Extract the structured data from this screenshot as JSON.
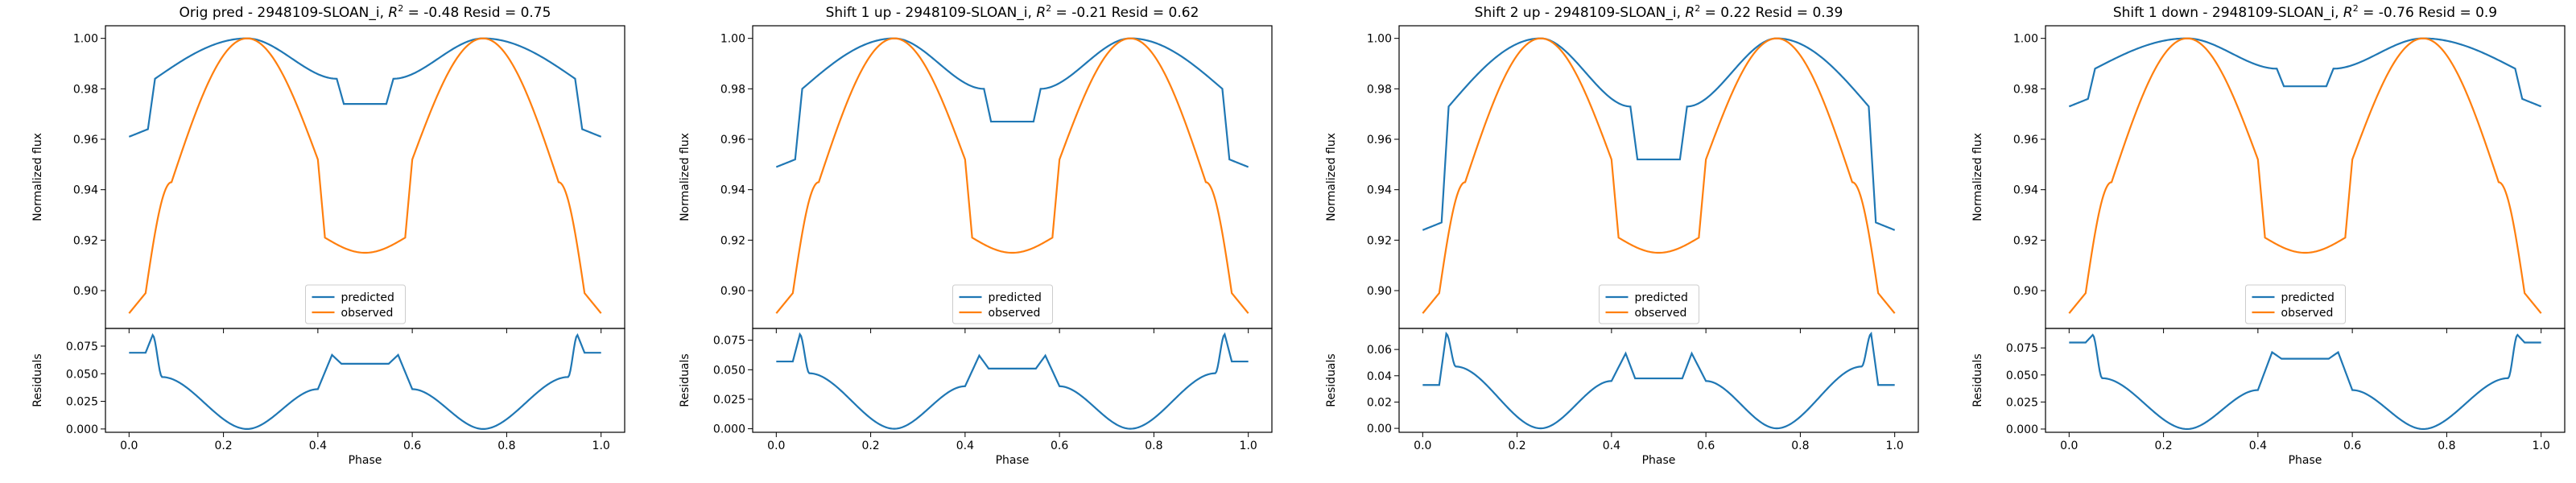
{
  "colors": {
    "predicted": "#1f77b4",
    "observed": "#ff7f0e",
    "axes": "#000000",
    "legend_border": "#cccccc"
  },
  "chart_data": [
    {
      "type": "line",
      "title_prefix": "Orig pred - 2948109-SLOAN_i, ",
      "r2_symbol": "R",
      "r2_exp": "2",
      "title_suffix": " = -0.48 Resid = 0.75",
      "xlabel": "Phase",
      "ylabel": "Normalized flux",
      "resid_ylabel": "Residuals",
      "legend": {
        "placement": "lower-center",
        "entries": [
          "predicted",
          "observed"
        ]
      },
      "xlim": [
        -0.05,
        1.05
      ],
      "ylim": [
        0.885,
        1.005
      ],
      "resid_ylim": [
        -0.003,
        0.091
      ],
      "xticks": [
        "0.0",
        "0.2",
        "0.4",
        "0.6",
        "0.8",
        "1.0"
      ],
      "yticks": [
        "0.90",
        "0.92",
        "0.94",
        "0.96",
        "0.98",
        "1.00"
      ],
      "resid_yticks": [
        "0.000",
        "0.025",
        "0.050",
        "0.075"
      ],
      "predicted": {
        "base": 0.961,
        "egress": 0.984,
        "peak": 1.0,
        "trough": 0.974
      },
      "observed": {
        "base": 0.891,
        "shoulder": 0.943,
        "peak": 1.0,
        "break": 0.952,
        "trough": 0.915
      },
      "residuals": {
        "start": 0.069,
        "spike": 0.085,
        "mid": 0.059,
        "midspike": 0.067
      }
    },
    {
      "type": "line",
      "title_prefix": "Shift 1 up - 2948109-SLOAN_i, ",
      "r2_symbol": "R",
      "r2_exp": "2",
      "title_suffix": " = -0.21 Resid = 0.62",
      "xlabel": "Phase",
      "ylabel": "Normalized flux",
      "resid_ylabel": "Residuals",
      "legend": {
        "placement": "lower-center",
        "entries": [
          "predicted",
          "observed"
        ]
      },
      "xlim": [
        -0.05,
        1.05
      ],
      "ylim": [
        0.885,
        1.005
      ],
      "resid_ylim": [
        -0.003,
        0.085
      ],
      "xticks": [
        "0.0",
        "0.2",
        "0.4",
        "0.6",
        "0.8",
        "1.0"
      ],
      "yticks": [
        "0.90",
        "0.92",
        "0.94",
        "0.96",
        "0.98",
        "1.00"
      ],
      "resid_yticks": [
        "0.000",
        "0.025",
        "0.050",
        "0.075"
      ],
      "predicted": {
        "base": 0.949,
        "egress": 0.98,
        "peak": 1.0,
        "trough": 0.967
      },
      "observed": {
        "base": 0.891,
        "shoulder": 0.943,
        "peak": 1.0,
        "break": 0.952,
        "trough": 0.915
      },
      "residuals": {
        "start": 0.057,
        "spike": 0.08,
        "mid": 0.051,
        "midspike": 0.062
      }
    },
    {
      "type": "line",
      "title_prefix": "Shift 2 up - 2948109-SLOAN_i, ",
      "r2_symbol": "R",
      "r2_exp": "2",
      "title_suffix": " = 0.22 Resid = 0.39",
      "xlabel": "Phase",
      "ylabel": "Normalized flux",
      "resid_ylabel": "Residuals",
      "legend": {
        "placement": "lower-center",
        "entries": [
          "predicted",
          "observed"
        ]
      },
      "xlim": [
        -0.05,
        1.05
      ],
      "ylim": [
        0.885,
        1.005
      ],
      "resid_ylim": [
        -0.003,
        0.076
      ],
      "xticks": [
        "0.0",
        "0.2",
        "0.4",
        "0.6",
        "0.8",
        "1.0"
      ],
      "yticks": [
        "0.90",
        "0.92",
        "0.94",
        "0.96",
        "0.98",
        "1.00"
      ],
      "resid_yticks": [
        "0.00",
        "0.02",
        "0.04",
        "0.06"
      ],
      "predicted": {
        "base": 0.924,
        "egress": 0.973,
        "peak": 1.0,
        "trough": 0.952
      },
      "observed": {
        "base": 0.891,
        "shoulder": 0.943,
        "peak": 1.0,
        "break": 0.952,
        "trough": 0.915
      },
      "residuals": {
        "start": 0.033,
        "spike": 0.072,
        "mid": 0.038,
        "midspike": 0.057
      }
    },
    {
      "type": "line",
      "title_prefix": "Shift 1 down - 2948109-SLOAN_i, ",
      "r2_symbol": "R",
      "r2_exp": "2",
      "title_suffix": " = -0.76 Resid = 0.9",
      "xlabel": "Phase",
      "ylabel": "Normalized flux",
      "resid_ylabel": "Residuals",
      "legend": {
        "placement": "lower-center",
        "entries": [
          "predicted",
          "observed"
        ]
      },
      "xlim": [
        -0.05,
        1.05
      ],
      "ylim": [
        0.885,
        1.005
      ],
      "resid_ylim": [
        -0.003,
        0.093
      ],
      "xticks": [
        "0.0",
        "0.2",
        "0.4",
        "0.6",
        "0.8",
        "1.0"
      ],
      "yticks": [
        "0.90",
        "0.92",
        "0.94",
        "0.96",
        "0.98",
        "1.00"
      ],
      "resid_yticks": [
        "0.000",
        "0.025",
        "0.050",
        "0.075"
      ],
      "predicted": {
        "base": 0.973,
        "egress": 0.988,
        "peak": 1.0,
        "trough": 0.981
      },
      "observed": {
        "base": 0.891,
        "shoulder": 0.943,
        "peak": 1.0,
        "break": 0.952,
        "trough": 0.915
      },
      "residuals": {
        "start": 0.08,
        "spike": 0.087,
        "mid": 0.065,
        "midspike": 0.071
      }
    }
  ]
}
